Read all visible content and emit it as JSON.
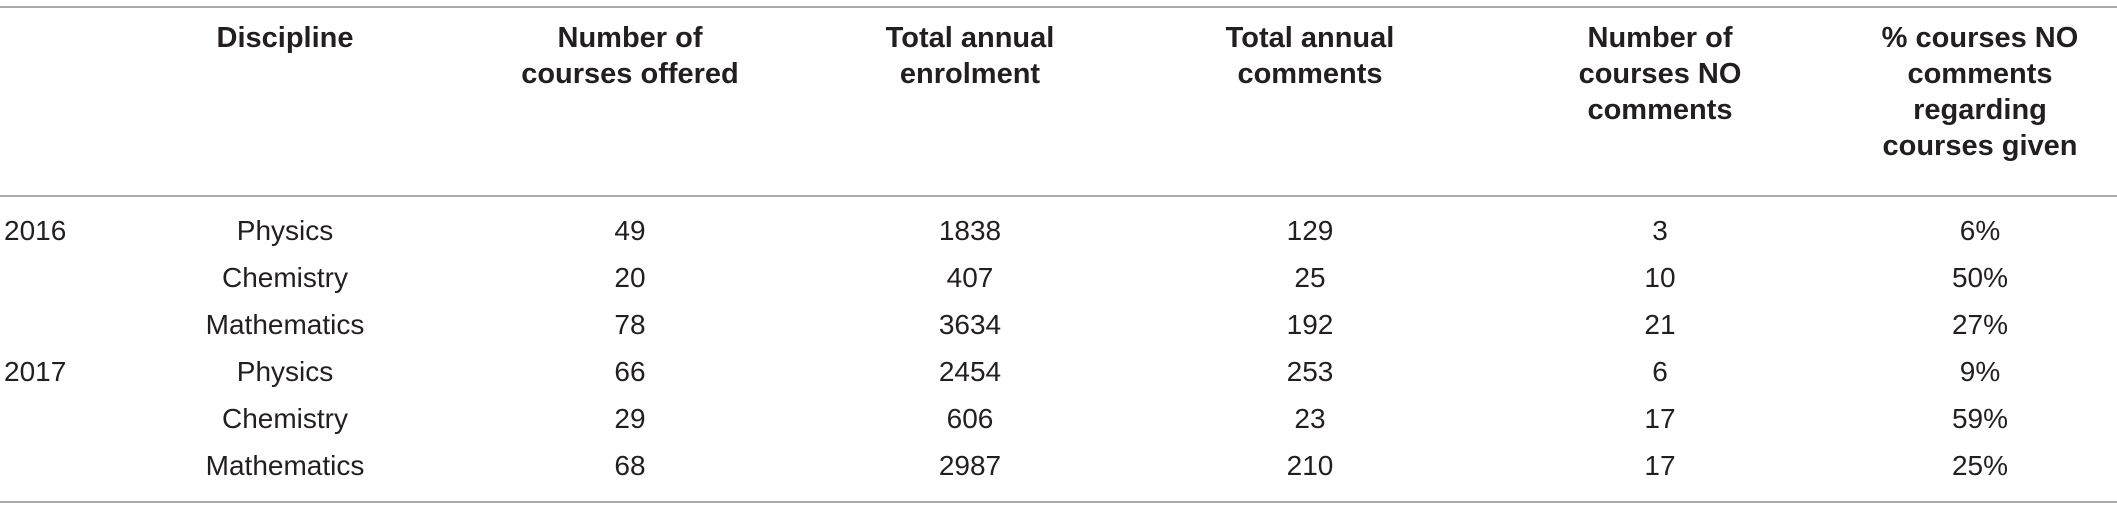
{
  "headers": [
    "",
    "Discipline",
    "Number of\ncourses offered",
    "Total annual\nenrolment",
    "Total annual\ncomments",
    "Number of\ncourses NO\ncomments",
    "% courses NO\ncomments\nregarding\ncourses given"
  ],
  "rows": [
    [
      "2016",
      "Physics",
      "49",
      "1838",
      "129",
      "3",
      "6%"
    ],
    [
      "",
      "Chemistry",
      "20",
      "407",
      "25",
      "10",
      "50%"
    ],
    [
      "",
      "Mathematics",
      "78",
      "3634",
      "192",
      "21",
      "27%"
    ],
    [
      "2017",
      "Physics",
      "66",
      "2454",
      "253",
      "6",
      "9%"
    ],
    [
      "",
      "Chemistry",
      "29",
      "606",
      "23",
      "17",
      "59%"
    ],
    [
      "",
      "Mathematics",
      "68",
      "2987",
      "210",
      "17",
      "25%"
    ]
  ]
}
